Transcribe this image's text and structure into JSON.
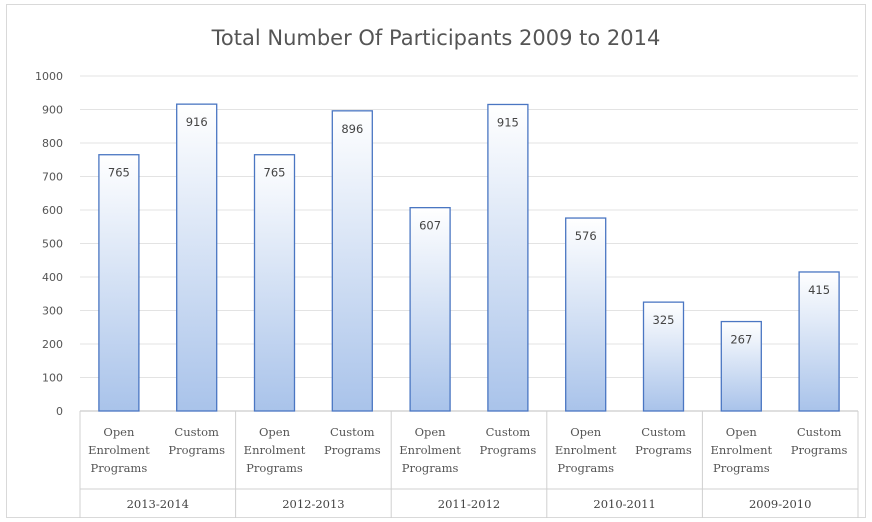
{
  "chart_data": {
    "type": "bar",
    "title": "Total Number Of Participants 2009 to 2014",
    "xlabel": "",
    "ylabel": "",
    "ylim": [
      0,
      1000
    ],
    "yticks": [
      0,
      100,
      200,
      300,
      400,
      500,
      600,
      700,
      800,
      900,
      1000
    ],
    "grid": true,
    "legend": "none",
    "bar_color": "#c6d7f0",
    "bar_edge_color": "#4a76c2",
    "groups": [
      {
        "label": "2013-2014",
        "bars": [
          {
            "category": "Open Enrolment Programs",
            "value": 765
          },
          {
            "category": "Custom Programs",
            "value": 916
          }
        ]
      },
      {
        "label": "2012-2013",
        "bars": [
          {
            "category": "Open Enrolment Programs",
            "value": 765
          },
          {
            "category": "Custom Programs",
            "value": 896
          }
        ]
      },
      {
        "label": "2011-2012",
        "bars": [
          {
            "category": "Open Enrolment Programs",
            "value": 607
          },
          {
            "category": "Custom Programs",
            "value": 915
          }
        ]
      },
      {
        "label": "2010-2011",
        "bars": [
          {
            "category": "Open Enrolment Programs",
            "value": 576
          },
          {
            "category": "Custom Programs",
            "value": 325
          }
        ]
      },
      {
        "label": "2009-2010",
        "bars": [
          {
            "category": "Open Enrolment Programs",
            "value": 267
          },
          {
            "category": "Custom Programs",
            "value": 415
          }
        ]
      }
    ]
  }
}
